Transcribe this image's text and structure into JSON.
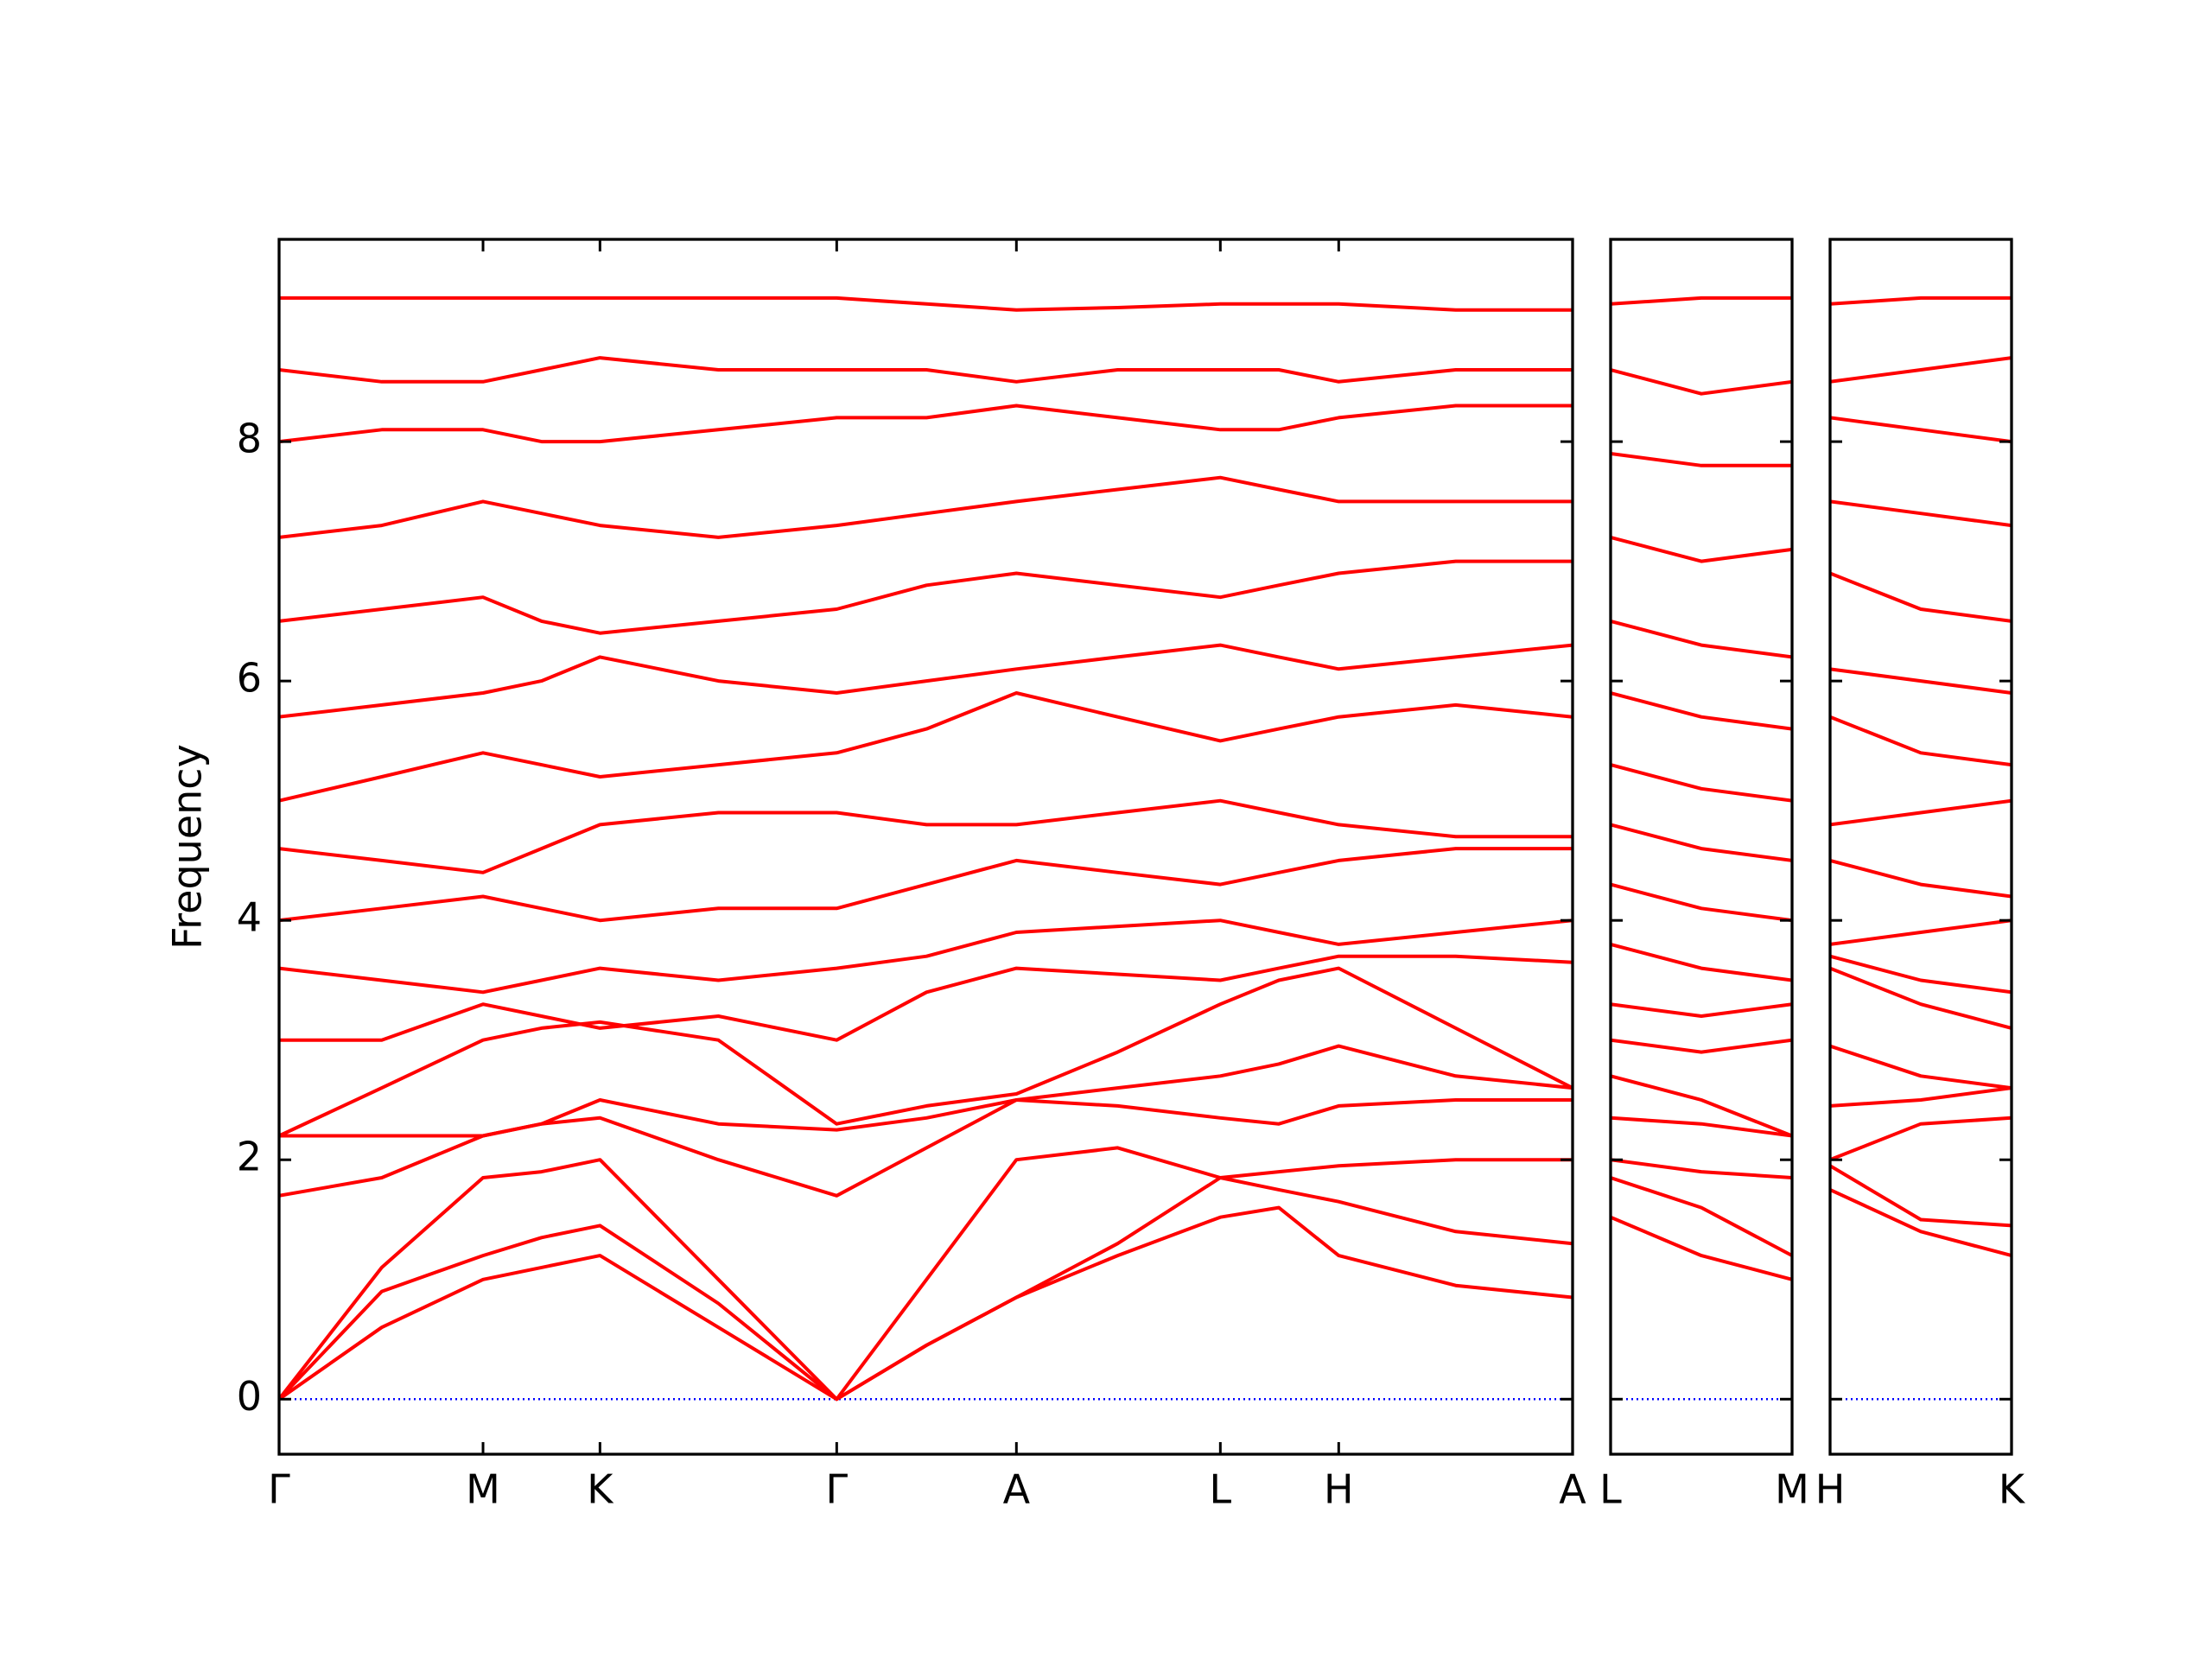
{
  "chart_data": [
    {
      "type": "line",
      "ylabel": "Frequency",
      "ylim": [
        -0.46,
        9.69
      ],
      "yticks": [
        0,
        2,
        4,
        6,
        8
      ],
      "zero_line": {
        "value": 0,
        "color": "#0000ff"
      },
      "color": "#ff0000",
      "x": [
        0,
        0.72,
        1.43,
        1.84,
        2.25,
        3.08,
        3.91,
        4.54,
        5.17,
        5.88,
        6.6,
        7.01,
        7.43,
        8.25,
        9.07
      ],
      "xlim": [
        0,
        9.07
      ],
      "xticks": [
        {
          "value": 0,
          "label": "Γ"
        },
        {
          "value": 1.43,
          "label": "M"
        },
        {
          "value": 2.25,
          "label": "K"
        },
        {
          "value": 3.91,
          "label": "Γ"
        },
        {
          "value": 5.17,
          "label": "A"
        },
        {
          "value": 6.6,
          "label": "L"
        },
        {
          "value": 7.43,
          "label": "H"
        },
        {
          "value": 9.07,
          "label": "A"
        }
      ],
      "series": [
        {
          "values": [
            0,
            0.6,
            1.0,
            1.1,
            1.2,
            0.6,
            0,
            0.45,
            0.85,
            1.2,
            1.52,
            1.6,
            1.2,
            0.95,
            0.85
          ]
        },
        {
          "values": [
            0,
            0.9,
            1.2,
            1.35,
            1.45,
            0.8,
            0,
            0.45,
            0.85,
            1.3,
            1.85,
            1.9,
            1.95,
            2.0,
            2.0
          ]
        },
        {
          "values": [
            0,
            1.1,
            1.85,
            1.9,
            2.0,
            1.0,
            0,
            1.0,
            2.0,
            2.1,
            1.85,
            1.75,
            1.65,
            1.4,
            1.3
          ]
        },
        {
          "values": [
            1.7,
            1.85,
            2.2,
            2.3,
            2.35,
            2.0,
            1.7,
            2.1,
            2.5,
            2.45,
            2.35,
            2.3,
            2.45,
            2.5,
            2.5
          ]
        },
        {
          "values": [
            2.2,
            2.2,
            2.2,
            2.3,
            2.5,
            2.3,
            2.25,
            2.35,
            2.5,
            2.6,
            2.7,
            2.8,
            2.95,
            2.7,
            2.6
          ]
        },
        {
          "values": [
            2.2,
            2.6,
            3.0,
            3.1,
            3.15,
            3.0,
            2.3,
            2.45,
            2.55,
            2.9,
            3.3,
            3.5,
            3.6,
            3.1,
            2.6
          ]
        },
        {
          "values": [
            3.0,
            3.0,
            3.3,
            3.2,
            3.1,
            3.2,
            3.0,
            3.4,
            3.6,
            3.55,
            3.5,
            3.6,
            3.7,
            3.7,
            3.65
          ]
        },
        {
          "values": [
            3.6,
            3.5,
            3.4,
            3.5,
            3.6,
            3.5,
            3.6,
            3.7,
            3.9,
            3.95,
            4.0,
            3.9,
            3.8,
            3.9,
            4.0
          ]
        },
        {
          "values": [
            4.0,
            4.1,
            4.2,
            4.1,
            4.0,
            4.1,
            4.1,
            4.3,
            4.5,
            4.4,
            4.3,
            4.4,
            4.5,
            4.6,
            4.6
          ]
        },
        {
          "values": [
            4.6,
            4.5,
            4.4,
            4.6,
            4.8,
            4.9,
            4.9,
            4.8,
            4.8,
            4.9,
            5.0,
            4.9,
            4.8,
            4.7,
            4.7
          ]
        },
        {
          "values": [
            5.0,
            5.2,
            5.4,
            5.3,
            5.2,
            5.3,
            5.4,
            5.6,
            5.9,
            5.7,
            5.5,
            5.6,
            5.7,
            5.8,
            5.7
          ]
        },
        {
          "values": [
            5.7,
            5.8,
            5.9,
            6.0,
            6.2,
            6.0,
            5.9,
            6.0,
            6.1,
            6.2,
            6.3,
            6.2,
            6.1,
            6.2,
            6.3
          ]
        },
        {
          "values": [
            6.5,
            6.6,
            6.7,
            6.5,
            6.4,
            6.5,
            6.6,
            6.8,
            6.9,
            6.8,
            6.7,
            6.8,
            6.9,
            7.0,
            7.0
          ]
        },
        {
          "values": [
            7.2,
            7.3,
            7.5,
            7.4,
            7.3,
            7.2,
            7.3,
            7.4,
            7.5,
            7.6,
            7.7,
            7.6,
            7.5,
            7.5,
            7.5
          ]
        },
        {
          "values": [
            8.0,
            8.1,
            8.1,
            8.0,
            8.0,
            8.1,
            8.2,
            8.2,
            8.3,
            8.2,
            8.1,
            8.1,
            8.2,
            8.3,
            8.3
          ]
        },
        {
          "values": [
            8.6,
            8.5,
            8.5,
            8.6,
            8.7,
            8.6,
            8.6,
            8.6,
            8.5,
            8.6,
            8.6,
            8.6,
            8.5,
            8.6,
            8.6
          ]
        },
        {
          "values": [
            9.2,
            9.2,
            9.2,
            9.2,
            9.2,
            9.2,
            9.2,
            9.15,
            9.1,
            9.12,
            9.15,
            9.15,
            9.15,
            9.1,
            9.1
          ]
        }
      ]
    },
    {
      "type": "line",
      "color": "#ff0000",
      "x": [
        0,
        0.635,
        1.27
      ],
      "xlim": [
        0,
        1.27
      ],
      "xticks": [
        {
          "value": 0,
          "label": "L"
        },
        {
          "value": 1.27,
          "label": "M"
        }
      ],
      "series": [
        {
          "values": [
            1.52,
            1.2,
            1.0
          ]
        },
        {
          "values": [
            1.85,
            1.6,
            1.2
          ]
        },
        {
          "values": [
            2.0,
            1.9,
            1.85
          ]
        },
        {
          "values": [
            2.35,
            2.3,
            2.2
          ]
        },
        {
          "values": [
            2.7,
            2.5,
            2.2
          ]
        },
        {
          "values": [
            3.0,
            2.9,
            3.0
          ]
        },
        {
          "values": [
            3.3,
            3.2,
            3.3
          ]
        },
        {
          "values": [
            3.8,
            3.6,
            3.5
          ]
        },
        {
          "values": [
            4.3,
            4.1,
            4.0
          ]
        },
        {
          "values": [
            4.8,
            4.6,
            4.5
          ]
        },
        {
          "values": [
            5.3,
            5.1,
            5.0
          ]
        },
        {
          "values": [
            5.9,
            5.7,
            5.6
          ]
        },
        {
          "values": [
            6.5,
            6.3,
            6.2
          ]
        },
        {
          "values": [
            7.2,
            7.0,
            7.1
          ]
        },
        {
          "values": [
            7.9,
            7.8,
            7.8
          ]
        },
        {
          "values": [
            8.6,
            8.4,
            8.5
          ]
        },
        {
          "values": [
            9.15,
            9.2,
            9.2
          ]
        }
      ]
    },
    {
      "type": "line",
      "color": "#ff0000",
      "x": [
        0,
        0.635,
        1.27
      ],
      "xlim": [
        0,
        1.27
      ],
      "xticks": [
        {
          "value": 0,
          "label": "H"
        },
        {
          "value": 1.27,
          "label": "K"
        }
      ],
      "series": [
        {
          "values": [
            1.95,
            1.5,
            1.45
          ]
        },
        {
          "values": [
            1.75,
            1.4,
            1.2
          ]
        },
        {
          "values": [
            2.0,
            2.3,
            2.35
          ]
        },
        {
          "values": [
            2.45,
            2.5,
            2.6
          ]
        },
        {
          "values": [
            2.95,
            2.7,
            2.6
          ]
        },
        {
          "values": [
            3.6,
            3.3,
            3.1
          ]
        },
        {
          "values": [
            3.7,
            3.5,
            3.4
          ]
        },
        {
          "values": [
            3.8,
            3.9,
            4.0
          ]
        },
        {
          "values": [
            4.5,
            4.3,
            4.2
          ]
        },
        {
          "values": [
            4.8,
            4.9,
            5.0
          ]
        },
        {
          "values": [
            5.7,
            5.4,
            5.3
          ]
        },
        {
          "values": [
            6.1,
            6.0,
            5.9
          ]
        },
        {
          "values": [
            6.9,
            6.6,
            6.5
          ]
        },
        {
          "values": [
            7.5,
            7.4,
            7.3
          ]
        },
        {
          "values": [
            8.2,
            8.1,
            8.0
          ]
        },
        {
          "values": [
            8.5,
            8.6,
            8.7
          ]
        },
        {
          "values": [
            9.15,
            9.2,
            9.2
          ]
        }
      ]
    }
  ]
}
